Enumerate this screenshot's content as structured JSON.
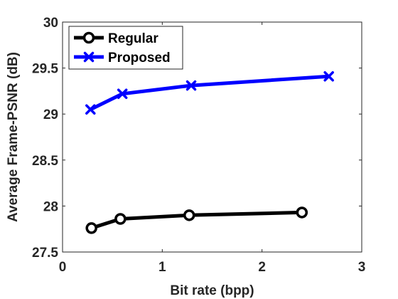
{
  "chart_data": {
    "type": "line",
    "title": "",
    "xlabel": "Bit rate (bpp)",
    "ylabel": "Average Frame-PSNR (dB)",
    "xlim": [
      0,
      3
    ],
    "ylim": [
      27.5,
      30
    ],
    "xticks": [
      0,
      1,
      2,
      3
    ],
    "xtick_labels": [
      "0",
      "1",
      "2",
      "3"
    ],
    "yticks": [
      27.5,
      28,
      28.5,
      29,
      29.5,
      30
    ],
    "ytick_labels": [
      "27.5",
      "28",
      "28.5",
      "29",
      "29.5",
      "30"
    ],
    "grid": false,
    "legend_position": "top-left",
    "series": [
      {
        "name": "Regular",
        "color": "#000000",
        "marker": "circle",
        "x": [
          0.29,
          0.58,
          1.27,
          2.4
        ],
        "y": [
          27.76,
          27.86,
          27.9,
          27.93
        ]
      },
      {
        "name": "Proposed",
        "color": "#0000ff",
        "marker": "x",
        "x": [
          0.28,
          0.6,
          1.29,
          2.67
        ],
        "y": [
          29.05,
          29.22,
          29.31,
          29.41
        ]
      }
    ]
  }
}
